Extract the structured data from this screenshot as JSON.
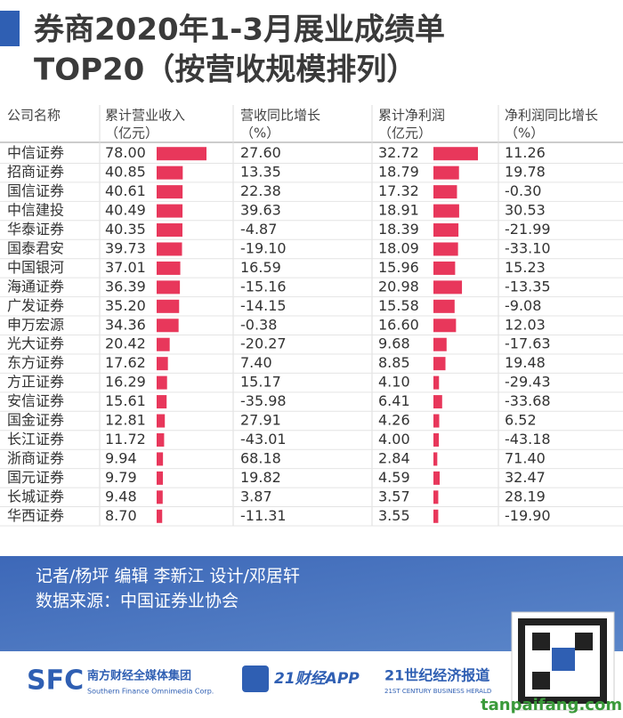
{
  "chart_data": {
    "type": "bar-table",
    "title": "券商2020年1-3月展业成绩单",
    "subtitle": "TOP20（按营收规模排列）",
    "category_label": "公司名称",
    "categories": [
      "中信证券",
      "招商证券",
      "国信证券",
      "中信建投",
      "华泰证券",
      "国泰君安",
      "中国银河",
      "海通证券",
      "广发证券",
      "申万宏源",
      "光大证券",
      "东方证券",
      "方正证券",
      "安信证券",
      "国金证券",
      "长江证券",
      "浙商证券",
      "国元证券",
      "长城证券",
      "华西证券"
    ],
    "series": [
      {
        "name": "累计营业收入",
        "unit": "（亿元）",
        "color": "#e8375b",
        "values": [
          78.0,
          40.85,
          40.61,
          40.49,
          40.35,
          39.73,
          37.01,
          36.39,
          35.2,
          34.36,
          20.42,
          17.62,
          16.29,
          15.61,
          12.81,
          11.72,
          9.94,
          9.79,
          9.48,
          8.7
        ],
        "value_labels": [
          "78.00",
          "40.85",
          "40.61",
          "40.49",
          "40.35",
          "39.73",
          "37.01",
          "36.39",
          "35.20",
          "34.36",
          "20.42",
          "17.62",
          "16.29",
          "15.61",
          "12.81",
          "11.72",
          "9.94",
          "9.79",
          "9.48",
          "8.70"
        ]
      },
      {
        "name": "营收同比增长",
        "unit": "（%）",
        "values": [
          27.6,
          13.35,
          22.38,
          39.63,
          -4.87,
          -19.1,
          16.59,
          -15.16,
          -14.15,
          -0.38,
          -20.27,
          7.4,
          15.17,
          -35.98,
          27.91,
          -43.01,
          68.18,
          19.82,
          3.87,
          -11.31
        ],
        "value_labels": [
          "27.60",
          "13.35",
          "22.38",
          "39.63",
          "-4.87",
          "-19.10",
          "16.59",
          "-15.16",
          "-14.15",
          "-0.38",
          "-20.27",
          "7.40",
          "15.17",
          "-35.98",
          "27.91",
          "-43.01",
          "68.18",
          "19.82",
          "3.87",
          "-11.31"
        ]
      },
      {
        "name": "累计净利润",
        "unit": "（亿元）",
        "color": "#e8375b",
        "values": [
          32.72,
          18.79,
          17.32,
          18.91,
          18.39,
          18.09,
          15.96,
          20.98,
          15.58,
          16.6,
          9.68,
          8.85,
          4.1,
          6.41,
          4.26,
          4.0,
          2.84,
          4.59,
          3.57,
          3.55
        ],
        "value_labels": [
          "32.72",
          "18.79",
          "17.32",
          "18.91",
          "18.39",
          "18.09",
          "15.96",
          "20.98",
          "15.58",
          "16.60",
          "9.68",
          "8.85",
          "4.10",
          "6.41",
          "4.26",
          "4.00",
          "2.84",
          "4.59",
          "3.57",
          "3.55"
        ]
      },
      {
        "name": "净利润同比增长",
        "unit": "（%）",
        "values": [
          11.26,
          19.78,
          -0.3,
          30.53,
          -21.99,
          -33.1,
          15.23,
          -13.35,
          -9.08,
          12.03,
          -17.63,
          19.48,
          -29.43,
          -33.68,
          6.52,
          -43.18,
          71.4,
          32.47,
          28.19,
          -19.9
        ],
        "value_labels": [
          "11.26",
          "19.78",
          "-0.30",
          "30.53",
          "-21.99",
          "-33.10",
          "15.23",
          "-13.35",
          "-9.08",
          "12.03",
          "-17.63",
          "19.48",
          "-29.43",
          "-33.68",
          "6.52",
          "-43.18",
          "71.40",
          "32.47",
          "28.19",
          "-19.90"
        ]
      }
    ],
    "credits": "记者/杨坪 编辑 李新江 设计/邓居轩",
    "source": "数据来源：中国证券业协会",
    "logos": [
      "SFC",
      "南方财经全媒体集团",
      "Southern Finance Omnimedia Corp.",
      "21财经APP",
      "21世纪经济报道",
      "21ST CENTURY BUSINESS HERALD"
    ],
    "watermark": "tanpaifang.com"
  }
}
